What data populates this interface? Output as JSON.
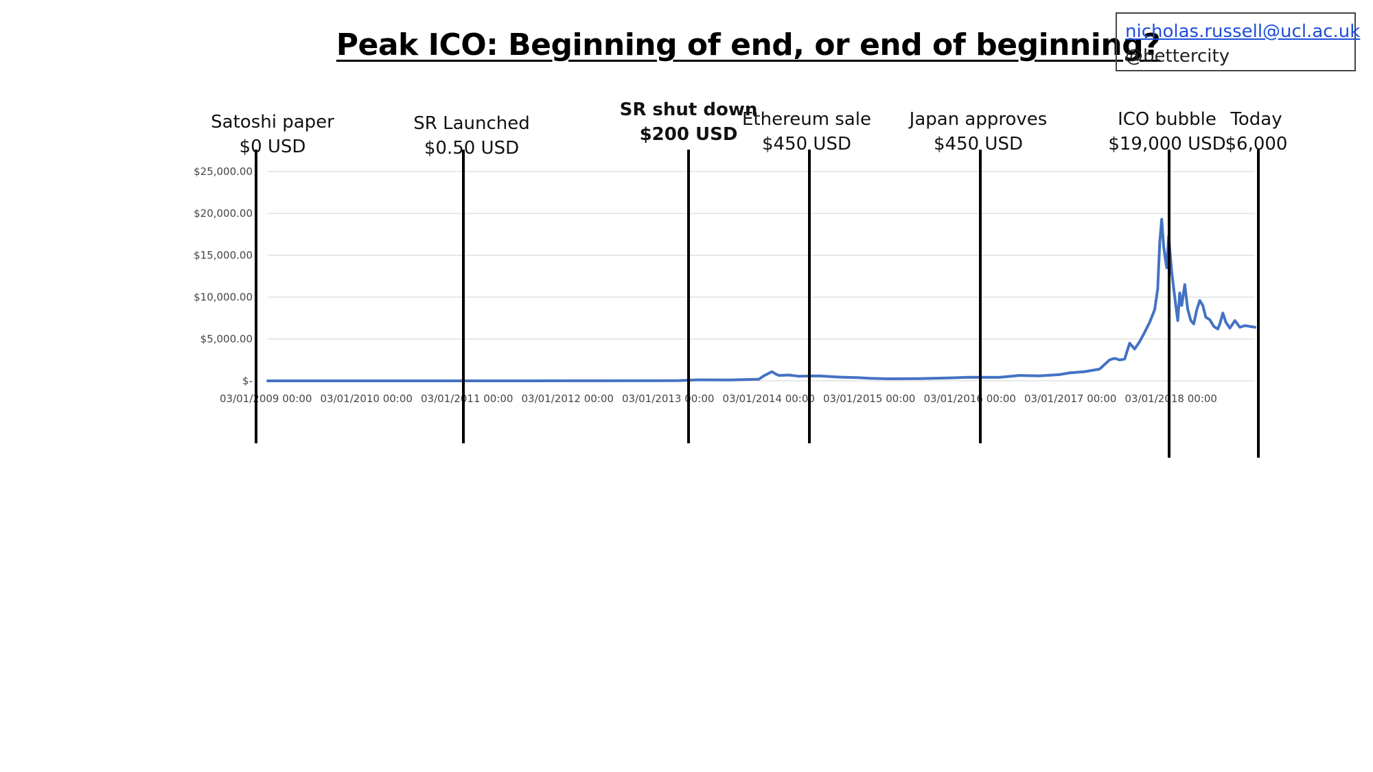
{
  "slide": {
    "title": "Peak ICO: Beginning of end, or end of beginning?",
    "email": "nicholas.russell@ucl.ac.uk",
    "handle": "@bettercity"
  },
  "chart_data": {
    "type": "line",
    "line_color": "#4472C4",
    "ylim": [
      0,
      25000
    ],
    "y_ticks": [
      {
        "value": 0,
        "label": "$-"
      },
      {
        "value": 5000,
        "label": "$5,000.00"
      },
      {
        "value": 10000,
        "label": "$10,000.00"
      },
      {
        "value": 15000,
        "label": "$15,000.00"
      },
      {
        "value": 20000,
        "label": "$20,000.00"
      },
      {
        "value": 25000,
        "label": "$25,000.00"
      }
    ],
    "x_range": [
      2009.0,
      2018.85
    ],
    "x_ticks": [
      {
        "value": 2009,
        "label": "03/01/2009 00:00"
      },
      {
        "value": 2010,
        "label": "03/01/2010 00:00"
      },
      {
        "value": 2011,
        "label": "03/01/2011 00:00"
      },
      {
        "value": 2012,
        "label": "03/01/2012 00:00"
      },
      {
        "value": 2013,
        "label": "03/01/2013 00:00"
      },
      {
        "value": 2014,
        "label": "03/01/2014 00:00"
      },
      {
        "value": 2015,
        "label": "03/01/2015 00:00"
      },
      {
        "value": 2016,
        "label": "03/01/2016 00:00"
      },
      {
        "value": 2017,
        "label": "03/01/2017 00:00"
      },
      {
        "value": 2018,
        "label": "03/01/2018 00:00"
      }
    ],
    "grid": true,
    "series": [
      {
        "points": [
          [
            2009.0,
            0
          ],
          [
            2010.5,
            0
          ],
          [
            2011.0,
            0.3
          ],
          [
            2012.0,
            5
          ],
          [
            2013.0,
            13
          ],
          [
            2013.1,
            30
          ],
          [
            2013.3,
            120
          ],
          [
            2013.6,
            100
          ],
          [
            2013.9,
            200
          ],
          [
            2013.95,
            600
          ],
          [
            2014.0,
            900
          ],
          [
            2014.03,
            1100
          ],
          [
            2014.07,
            800
          ],
          [
            2014.1,
            650
          ],
          [
            2014.2,
            700
          ],
          [
            2014.3,
            550
          ],
          [
            2014.5,
            600
          ],
          [
            2014.7,
            450
          ],
          [
            2014.9,
            380
          ],
          [
            2015.0,
            300
          ],
          [
            2015.2,
            250
          ],
          [
            2015.5,
            260
          ],
          [
            2015.8,
            350
          ],
          [
            2016.0,
            430
          ],
          [
            2016.3,
            420
          ],
          [
            2016.5,
            650
          ],
          [
            2016.7,
            600
          ],
          [
            2016.9,
            750
          ],
          [
            2017.0,
            950
          ],
          [
            2017.15,
            1100
          ],
          [
            2017.3,
            1400
          ],
          [
            2017.4,
            2500
          ],
          [
            2017.45,
            2700
          ],
          [
            2017.5,
            2500
          ],
          [
            2017.55,
            2600
          ],
          [
            2017.6,
            4500
          ],
          [
            2017.65,
            3800
          ],
          [
            2017.7,
            4700
          ],
          [
            2017.75,
            5800
          ],
          [
            2017.8,
            7000
          ],
          [
            2017.85,
            8500
          ],
          [
            2017.88,
            11000
          ],
          [
            2017.9,
            16500
          ],
          [
            2017.92,
            19300
          ],
          [
            2017.94,
            16000
          ],
          [
            2017.97,
            13500
          ],
          [
            2017.99,
            17300
          ],
          [
            2018.02,
            13000
          ],
          [
            2018.05,
            10000
          ],
          [
            2018.08,
            7200
          ],
          [
            2018.1,
            10500
          ],
          [
            2018.12,
            9000
          ],
          [
            2018.15,
            11500
          ],
          [
            2018.18,
            8500
          ],
          [
            2018.21,
            7200
          ],
          [
            2018.24,
            6800
          ],
          [
            2018.27,
            8500
          ],
          [
            2018.3,
            9600
          ],
          [
            2018.33,
            9000
          ],
          [
            2018.36,
            7600
          ],
          [
            2018.4,
            7300
          ],
          [
            2018.44,
            6500
          ],
          [
            2018.48,
            6200
          ],
          [
            2018.5,
            6800
          ],
          [
            2018.53,
            8100
          ],
          [
            2018.56,
            7000
          ],
          [
            2018.6,
            6300
          ],
          [
            2018.65,
            7200
          ],
          [
            2018.7,
            6400
          ],
          [
            2018.75,
            6600
          ],
          [
            2018.8,
            6500
          ],
          [
            2018.85,
            6400
          ]
        ]
      }
    ],
    "events": [
      {
        "x": 2009.0,
        "line_bottom": "low",
        "name": "Satoshi paper",
        "price": "$0 USD",
        "bold": false
      },
      {
        "x": 2011.05,
        "line_bottom": "low",
        "name": "SR Launched",
        "price": "$0.50 USD",
        "bold": false
      },
      {
        "x": 2013.28,
        "line_bottom": "low",
        "name": "SR shut down",
        "price": "$200 USD",
        "bold": true
      },
      {
        "x": 2014.48,
        "line_bottom": "low",
        "name": "Ethereum sale",
        "price": "$450 USD",
        "bold": false
      },
      {
        "x": 2016.18,
        "line_bottom": "low",
        "name": "Japan approves",
        "price": "$450 USD",
        "bold": false
      },
      {
        "x": 2017.96,
        "line_bottom": "lower",
        "name": "ICO bubble",
        "price": "$19,000 USD",
        "bold": false
      },
      {
        "x": 2018.85,
        "line_bottom": "lower",
        "name": "Today",
        "price": "$6,000",
        "bold": false
      }
    ]
  }
}
